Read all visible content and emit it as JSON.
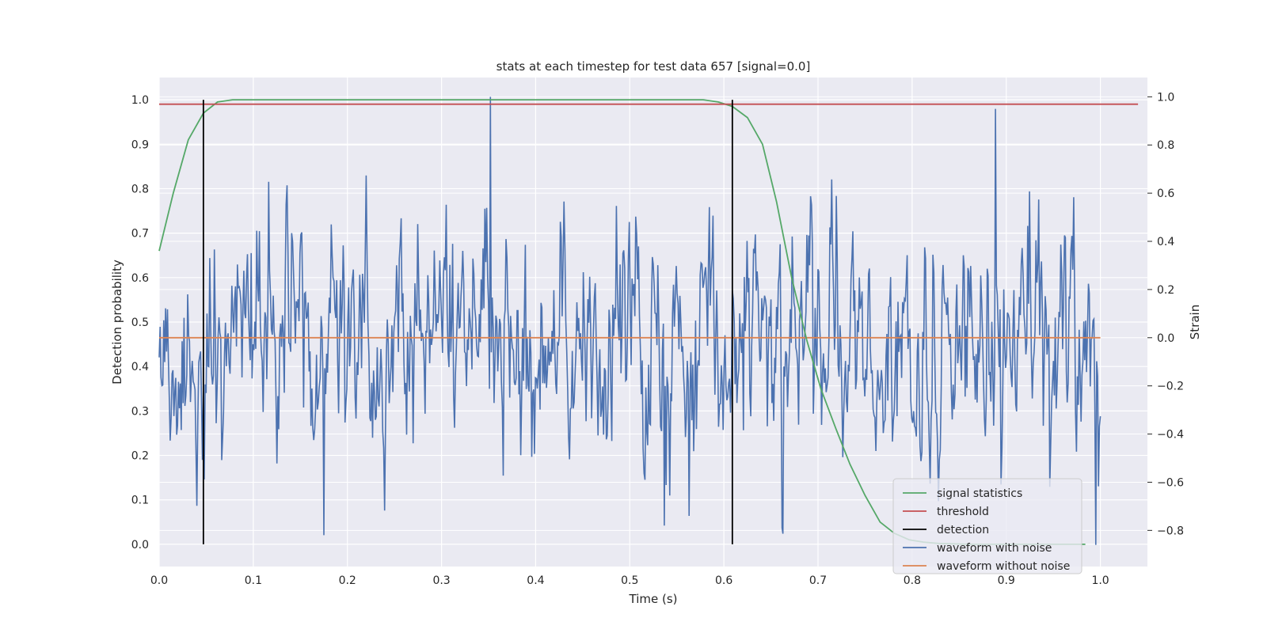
{
  "chart_data": {
    "type": "line",
    "title": "stats at each timestep for test data 657 [signal=0.0]",
    "xlabel": "Time (s)",
    "ylabel_left": "Detection probability",
    "ylabel_right": "Strain",
    "xlim": [
      0.0,
      1.05
    ],
    "ylim_left": [
      -0.05,
      1.05
    ],
    "ylim_right": [
      -0.95,
      1.08
    ],
    "x_ticks": [
      0.0,
      0.1,
      0.2,
      0.3,
      0.4,
      0.5,
      0.6,
      0.7,
      0.8,
      0.9,
      1.0
    ],
    "x_tick_labels": [
      "0.0",
      "0.1",
      "0.2",
      "0.3",
      "0.4",
      "0.5",
      "0.6",
      "0.7",
      "0.8",
      "0.9",
      "1.0"
    ],
    "y_left_ticks": [
      0.0,
      0.1,
      0.2,
      0.3,
      0.4,
      0.5,
      0.6,
      0.7,
      0.8,
      0.9,
      1.0
    ],
    "y_left_tick_labels": [
      "0.0",
      "0.1",
      "0.2",
      "0.3",
      "0.4",
      "0.5",
      "0.6",
      "0.7",
      "0.8",
      "0.9",
      "1.0"
    ],
    "y_right_ticks": [
      -0.8,
      -0.6,
      -0.4,
      -0.2,
      0.0,
      0.2,
      0.4,
      0.6,
      0.8,
      1.0
    ],
    "y_right_tick_labels": [
      "−0.8",
      "−0.6",
      "−0.4",
      "−0.2",
      "0.0",
      "0.2",
      "0.4",
      "0.6",
      "0.8",
      "1.0"
    ],
    "grid": true,
    "legend_position": "lower-right",
    "series": [
      {
        "name": "signal statistics",
        "axis": "left",
        "color": "#55a868",
        "x": [
          0.0,
          0.015,
          0.031,
          0.047,
          0.062,
          0.078,
          0.094,
          0.5,
          0.578,
          0.594,
          0.609,
          0.625,
          0.641,
          0.656,
          0.672,
          0.688,
          0.703,
          0.719,
          0.734,
          0.75,
          0.766,
          0.781,
          0.797,
          0.812,
          0.828,
          0.844,
          0.859,
          0.875,
          0.984
        ],
        "y": [
          0.66,
          0.79,
          0.91,
          0.97,
          0.995,
          1.0,
          1.0,
          1.0,
          1.0,
          0.995,
          0.985,
          0.96,
          0.9,
          0.77,
          0.6,
          0.46,
          0.35,
          0.26,
          0.18,
          0.11,
          0.05,
          0.025,
          0.01,
          0.005,
          0.002,
          0.001,
          0.0,
          0.0,
          0.0
        ]
      },
      {
        "name": "threshold",
        "axis": "left",
        "color": "#c44e52",
        "x": [
          0.0,
          1.04
        ],
        "y": [
          0.99,
          0.99
        ]
      },
      {
        "name": "detection",
        "axis": "left",
        "color": "#000000",
        "type": "vlines",
        "x": [
          0.047,
          0.609
        ],
        "y_range": [
          0.0,
          1.0
        ]
      },
      {
        "name": "waveform with noise",
        "axis": "right",
        "color": "#4c72b0",
        "x_start": 0.0,
        "x_end": 1.0,
        "approx_points": 1024,
        "y_mean": 0.0,
        "y_std": 0.23,
        "y_max": 1.0,
        "y_min": -0.86
      },
      {
        "name": "waveform without noise",
        "axis": "right",
        "color": "#dd8452",
        "x": [
          0.0,
          1.0
        ],
        "y": [
          0.0,
          0.0
        ]
      }
    ]
  }
}
